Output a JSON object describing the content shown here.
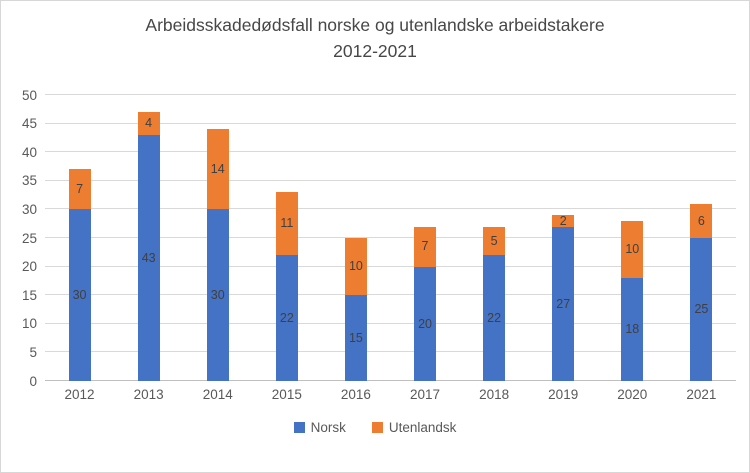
{
  "title": {
    "line1": "Arbeidsskadedødsfall norske og utenlandske arbeidstakere",
    "line2": "2012-2021"
  },
  "chart_data": {
    "type": "bar",
    "stacked": true,
    "title": "Arbeidsskadedødsfall norske og utenlandske arbeidstakere 2012-2021",
    "categories": [
      "2012",
      "2013",
      "2014",
      "2015",
      "2016",
      "2017",
      "2018",
      "2019",
      "2020",
      "2021"
    ],
    "series": [
      {
        "name": "Norsk",
        "color": "#4472C4",
        "values": [
          30,
          43,
          30,
          22,
          15,
          20,
          22,
          27,
          18,
          25
        ]
      },
      {
        "name": "Utenlandsk",
        "color": "#ED7D31",
        "values": [
          7,
          4,
          14,
          11,
          10,
          7,
          5,
          2,
          10,
          6
        ]
      }
    ],
    "totals": [
      37,
      47,
      44,
      33,
      25,
      27,
      27,
      29,
      28,
      31
    ],
    "ylim": [
      0,
      50
    ],
    "yticks": [
      0,
      5,
      10,
      15,
      20,
      25,
      30,
      35,
      40,
      45,
      50
    ],
    "grid": true,
    "data_labels": true,
    "legend_position": "bottom",
    "xlabel": "",
    "ylabel": ""
  },
  "colors": {
    "norsk": "#4472C4",
    "utenlandsk": "#ED7D31",
    "gridline": "#d9d9d9",
    "axis_text": "#595959",
    "title_text": "#474747",
    "data_label_text": "#404040"
  }
}
